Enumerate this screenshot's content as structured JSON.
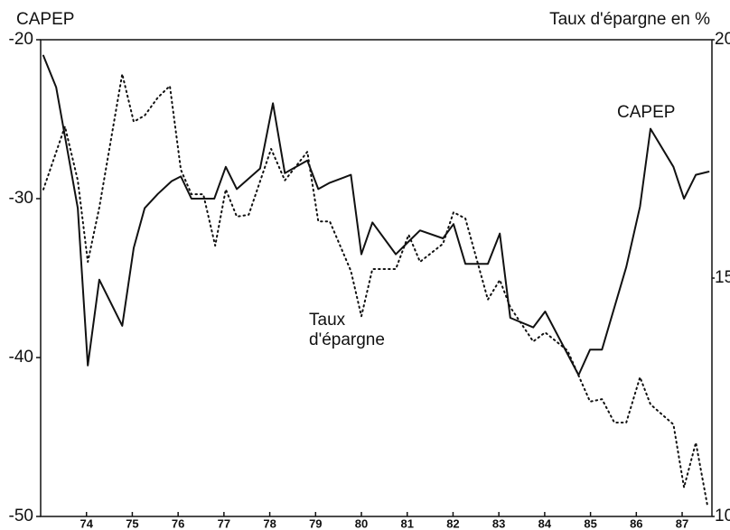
{
  "chart_data": {
    "type": "line",
    "ylabel": "CAPEP",
    "y2label": "Taux d'épargne en %",
    "xlim": [
      73,
      87.65
    ],
    "xticks": [
      74,
      75,
      76,
      77,
      78,
      79,
      80,
      81,
      82,
      83,
      84,
      85,
      86,
      87
    ],
    "ylim": [
      -50,
      -20
    ],
    "yticks": [
      -50,
      -40,
      -30,
      -20
    ],
    "y2lim": [
      10,
      20
    ],
    "y2ticks": [
      10,
      15,
      20
    ],
    "series": [
      {
        "name": "CAPEP",
        "color": "#111111",
        "style": "solid",
        "x": [
          73.06,
          73.34,
          73.81,
          74.03,
          74.28,
          74.78,
          75.03,
          75.27,
          75.56,
          75.86,
          76.06,
          76.29,
          76.79,
          77.04,
          77.28,
          77.79,
          78.07,
          78.33,
          78.82,
          79.06,
          79.31,
          79.77,
          80.0,
          80.24,
          80.75,
          81.03,
          81.28,
          81.78,
          82.01,
          82.27,
          82.76,
          83.02,
          83.25,
          83.75,
          84.01,
          84.74,
          84.99,
          85.25,
          85.78,
          86.08,
          86.31,
          86.81,
          87.04,
          87.3,
          87.58
        ],
        "values": [
          -21.0,
          -23.0,
          -30.6,
          -40.5,
          -35.1,
          -38.0,
          -33.1,
          -30.6,
          -29.7,
          -28.9,
          -28.6,
          -30.0,
          -30.0,
          -28.0,
          -29.4,
          -28.1,
          -24.0,
          -28.4,
          -27.6,
          -29.4,
          -29.0,
          -28.5,
          -33.5,
          -31.5,
          -33.5,
          -32.7,
          -32.0,
          -32.5,
          -31.6,
          -34.1,
          -34.1,
          -32.2,
          -37.5,
          -38.1,
          -37.1,
          -41.1,
          -39.5,
          -39.5,
          -34.3,
          -30.5,
          -25.6,
          -28.0,
          -30.0,
          -28.5,
          -28.3
        ]
      },
      {
        "name": "Taux d'épargne",
        "color": "#111111",
        "style": "dotted",
        "axis": "y2",
        "x": [
          73.06,
          73.53,
          73.81,
          74.03,
          74.28,
          74.78,
          75.03,
          75.27,
          75.56,
          75.82,
          76.06,
          76.29,
          76.55,
          76.81,
          77.04,
          77.28,
          77.54,
          78.03,
          78.33,
          78.82,
          79.06,
          79.31,
          79.77,
          80.0,
          80.24,
          80.75,
          81.03,
          81.28,
          81.78,
          82.01,
          82.27,
          82.76,
          83.02,
          83.25,
          83.75,
          84.01,
          84.5,
          84.99,
          85.25,
          85.52,
          85.78,
          86.08,
          86.31,
          86.81,
          87.04,
          87.3,
          87.56
        ],
        "values": [
          16.86,
          18.18,
          17.05,
          15.34,
          16.48,
          19.28,
          18.28,
          18.41,
          18.79,
          19.03,
          17.27,
          16.76,
          16.76,
          15.68,
          16.86,
          16.29,
          16.33,
          17.71,
          17.05,
          17.65,
          16.19,
          16.19,
          15.15,
          14.2,
          15.19,
          15.19,
          15.91,
          15.34,
          15.72,
          16.38,
          16.25,
          14.55,
          14.96,
          14.39,
          13.67,
          13.86,
          13.48,
          12.41,
          12.46,
          11.97,
          11.97,
          12.92,
          12.35,
          11.93,
          10.61,
          11.55,
          10.19
        ]
      }
    ]
  }
}
